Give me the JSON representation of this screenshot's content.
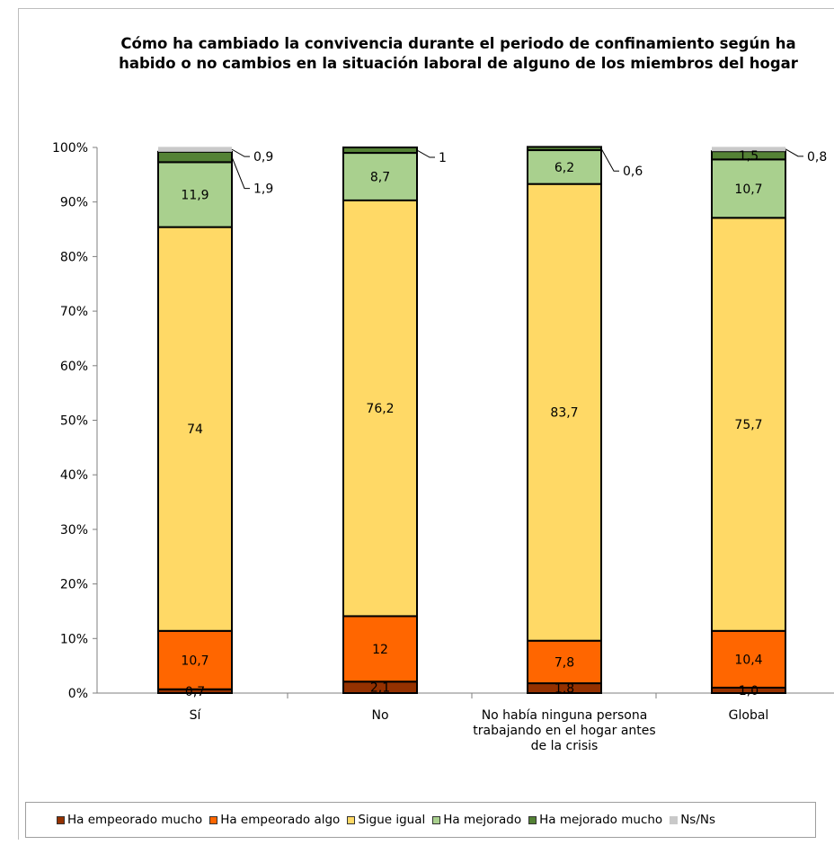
{
  "chart_data": {
    "type": "bar",
    "stacked": true,
    "title": "Cómo ha cambiado la convivencia durante el periodo de confinamiento según ha habido o no cambios en la situación laboral de alguno de los miembros del hogar",
    "categories": [
      "Sí",
      "No",
      "No había ninguna persona trabajando en el hogar antes de la crisis",
      "Global"
    ],
    "yticks": [
      "0%",
      "10%",
      "20%",
      "30%",
      "40%",
      "50%",
      "60%",
      "70%",
      "80%",
      "90%",
      "100%"
    ],
    "ylim": [
      0,
      100
    ],
    "legend_position": "bottom",
    "series": [
      {
        "name": "Ha empeorado mucho",
        "color": "#943100",
        "values": [
          0.7,
          2.1,
          1.8,
          1.0
        ],
        "labels": [
          "0,7",
          "2,1",
          "1,8",
          "1,0"
        ]
      },
      {
        "name": "Ha empeorado algo",
        "color": "#ff6600",
        "values": [
          10.7,
          12,
          7.8,
          10.4
        ],
        "labels": [
          "10,7",
          "12",
          "7,8",
          "10,4"
        ]
      },
      {
        "name": "Sigue igual",
        "color": "#ffd966",
        "values": [
          74,
          76.2,
          83.7,
          75.7
        ],
        "labels": [
          "74",
          "76,2",
          "83,7",
          "75,7"
        ]
      },
      {
        "name": "Ha mejorado",
        "color": "#a9d08e",
        "values": [
          11.9,
          8.7,
          6.2,
          10.7
        ],
        "labels": [
          "11,9",
          "8,7",
          "6,2",
          "10,7"
        ]
      },
      {
        "name": "Ha mejorado mucho",
        "color": "#548235",
        "values": [
          1.9,
          1,
          0.6,
          1.5
        ],
        "labels": [
          "1,9",
          "1",
          "0,6",
          "1,5"
        ]
      },
      {
        "name": "Ns/Ns",
        "color": "#c9c9c9",
        "values": [
          0.9,
          0,
          0,
          0.8
        ],
        "labels": [
          "0,9",
          "",
          "",
          "0,8"
        ]
      }
    ],
    "callouts": [
      {
        "bar": 0,
        "series": 5,
        "text": "0,9"
      },
      {
        "bar": 0,
        "series": 4,
        "text": "1,9"
      },
      {
        "bar": 1,
        "series": 4,
        "text": "1"
      },
      {
        "bar": 2,
        "series": 4,
        "text": "0,6"
      },
      {
        "bar": 3,
        "series": 5,
        "text": "0,8"
      }
    ]
  }
}
